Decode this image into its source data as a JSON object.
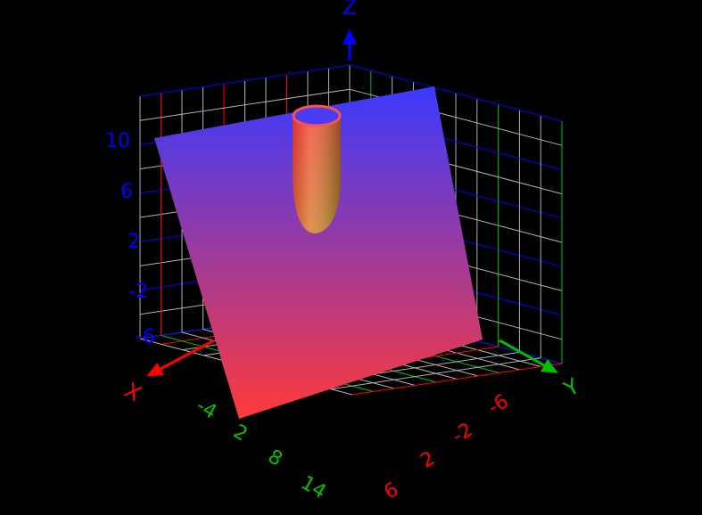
{
  "chart_data": {
    "type": "surface",
    "title": "",
    "background": "#000000",
    "axes": {
      "x": {
        "label": "X",
        "color": "#ff0000",
        "tick_color": "#00c000",
        "ticks": [
          "-4",
          "2",
          "8",
          "14"
        ]
      },
      "y": {
        "label": "Y",
        "color": "#00c000",
        "tick_color": "#ff0000",
        "ticks": [
          "-6",
          "-2",
          "2",
          "6"
        ]
      },
      "z": {
        "label": "Z",
        "color": "#0000ff",
        "tick_color": "#0000ff",
        "ticks": [
          "10",
          "6",
          "2",
          "-2",
          "-6"
        ]
      }
    },
    "surfaces": [
      {
        "kind": "plane",
        "gradient": [
          "#3a3aff",
          "#ff3a3a"
        ]
      },
      {
        "kind": "tube",
        "gradient": [
          "#ff3a3a",
          "#c8a030"
        ]
      }
    ],
    "grid": true
  }
}
